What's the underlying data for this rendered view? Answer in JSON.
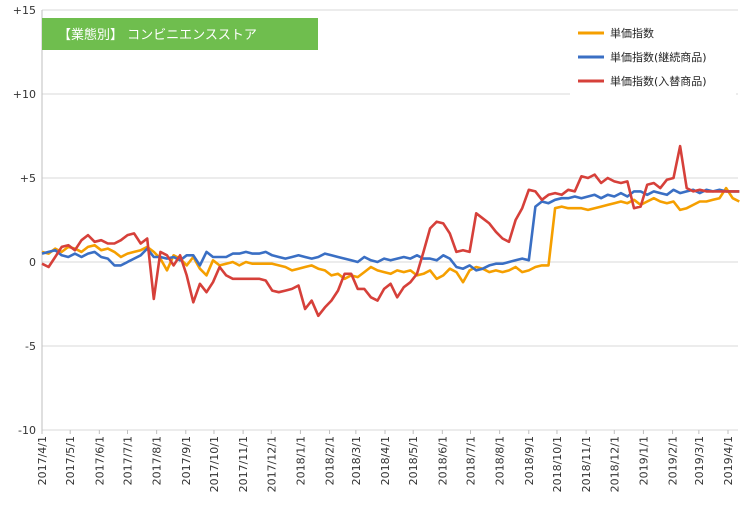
{
  "chart_data": {
    "type": "line",
    "title": "【業態別】 コンビニエンスストア",
    "title_bg": "#6fbe4e",
    "ylim": [
      -10,
      15
    ],
    "yticks": [
      "-10",
      "-5",
      "0",
      "+5",
      "+10",
      "+15"
    ],
    "ytick_values": [
      -10,
      -5,
      0,
      5,
      10,
      15
    ],
    "grid": "horizontal",
    "legend_position": "top-right",
    "x_dates": [
      "2017-04-01",
      "2017-04-08",
      "2017-04-15",
      "2017-04-22",
      "2017-04-29",
      "2017-05-06",
      "2017-05-13",
      "2017-05-20",
      "2017-05-27",
      "2017-06-03",
      "2017-06-10",
      "2017-06-17",
      "2017-06-24",
      "2017-07-01",
      "2017-07-08",
      "2017-07-15",
      "2017-07-22",
      "2017-07-29",
      "2017-08-05",
      "2017-08-12",
      "2017-08-19",
      "2017-08-26",
      "2017-09-02",
      "2017-09-09",
      "2017-09-16",
      "2017-09-23",
      "2017-09-30",
      "2017-10-07",
      "2017-10-14",
      "2017-10-21",
      "2017-10-28",
      "2017-11-04",
      "2017-11-11",
      "2017-11-18",
      "2017-11-25",
      "2017-12-02",
      "2017-12-09",
      "2017-12-16",
      "2017-12-23",
      "2017-12-30",
      "2018-01-06",
      "2018-01-13",
      "2018-01-20",
      "2018-01-27",
      "2018-02-03",
      "2018-02-10",
      "2018-02-17",
      "2018-02-24",
      "2018-03-03",
      "2018-03-10",
      "2018-03-17",
      "2018-03-24",
      "2018-03-31",
      "2018-04-07",
      "2018-04-14",
      "2018-04-21",
      "2018-04-28",
      "2018-05-05",
      "2018-05-12",
      "2018-05-19",
      "2018-05-26",
      "2018-06-02",
      "2018-06-09",
      "2018-06-16",
      "2018-06-23",
      "2018-06-30",
      "2018-07-07",
      "2018-07-14",
      "2018-07-21",
      "2018-07-28",
      "2018-08-04",
      "2018-08-11",
      "2018-08-18",
      "2018-08-25",
      "2018-09-01",
      "2018-09-08",
      "2018-09-15",
      "2018-09-22",
      "2018-09-29",
      "2018-10-06",
      "2018-10-13",
      "2018-10-20",
      "2018-10-27",
      "2018-11-03",
      "2018-11-10",
      "2018-11-17",
      "2018-11-24",
      "2018-12-01",
      "2018-12-08",
      "2018-12-15",
      "2018-12-22",
      "2018-12-29",
      "2019-01-05",
      "2019-01-12",
      "2019-01-19",
      "2019-01-26",
      "2019-02-02",
      "2019-02-09",
      "2019-02-16",
      "2019-02-23",
      "2019-03-02",
      "2019-03-09",
      "2019-03-16",
      "2019-03-23",
      "2019-03-30",
      "2019-04-06",
      "2019-04-13"
    ],
    "x_ticks": [
      "2017/4/1",
      "2017/5/1",
      "2017/6/1",
      "2017/7/1",
      "2017/8/1",
      "2017/9/1",
      "2017/10/1",
      "2017/11/1",
      "2017/12/1",
      "2018/1/1",
      "2018/2/1",
      "2018/3/1",
      "2018/4/1",
      "2018/5/1",
      "2018/6/1",
      "2018/7/1",
      "2018/8/1",
      "2018/9/1",
      "2018/10/1",
      "2018/11/1",
      "2018/12/1",
      "2019/1/1",
      "2019/2/1",
      "2019/3/1",
      "2019/4/1"
    ],
    "x_tick_dates": [
      "2017-04-01",
      "2017-05-01",
      "2017-06-01",
      "2017-07-01",
      "2017-08-01",
      "2017-09-01",
      "2017-10-01",
      "2017-11-01",
      "2017-12-01",
      "2018-01-01",
      "2018-02-01",
      "2018-03-01",
      "2018-04-01",
      "2018-05-01",
      "2018-06-01",
      "2018-07-01",
      "2018-08-01",
      "2018-09-01",
      "2018-10-01",
      "2018-11-01",
      "2018-12-01",
      "2019-01-01",
      "2019-02-01",
      "2019-03-01",
      "2019-04-01"
    ],
    "series": [
      {
        "name": "単価指数",
        "color": "#f59f00",
        "values": [
          0.6,
          0.5,
          0.8,
          0.6,
          0.9,
          0.8,
          0.6,
          0.9,
          1.0,
          0.7,
          0.8,
          0.6,
          0.3,
          0.5,
          0.6,
          0.7,
          0.9,
          0.6,
          0.2,
          -0.5,
          0.4,
          0.2,
          -0.2,
          0.3,
          -0.4,
          -0.8,
          0.1,
          -0.2,
          -0.1,
          0.0,
          -0.2,
          0.0,
          -0.1,
          -0.1,
          -0.1,
          -0.1,
          -0.2,
          -0.3,
          -0.5,
          -0.4,
          -0.3,
          -0.2,
          -0.4,
          -0.5,
          -0.8,
          -0.7,
          -1.0,
          -0.8,
          -0.9,
          -0.6,
          -0.3,
          -0.5,
          -0.6,
          -0.7,
          -0.5,
          -0.6,
          -0.5,
          -0.8,
          -0.7,
          -0.5,
          -1.0,
          -0.8,
          -0.4,
          -0.6,
          -1.2,
          -0.5,
          -0.3,
          -0.4,
          -0.6,
          -0.5,
          -0.6,
          -0.5,
          -0.3,
          -0.6,
          -0.5,
          -0.3,
          -0.2,
          -0.2,
          3.2,
          3.3,
          3.2,
          3.2,
          3.2,
          3.1,
          3.2,
          3.3,
          3.4,
          3.5,
          3.6,
          3.5,
          3.7,
          3.4,
          3.6,
          3.8,
          3.6,
          3.5,
          3.6,
          3.1,
          3.2,
          3.4,
          3.6,
          3.6,
          3.7,
          3.8,
          4.4,
          3.8,
          3.6
        ],
        "label_name": "series.0.name"
      },
      {
        "name": "単価指数(継続商品)",
        "color": "#3a6fc4",
        "values": [
          0.5,
          0.6,
          0.7,
          0.4,
          0.3,
          0.5,
          0.3,
          0.5,
          0.6,
          0.3,
          0.2,
          -0.2,
          -0.2,
          0.0,
          0.2,
          0.4,
          0.8,
          0.3,
          0.3,
          0.2,
          0.3,
          0.1,
          0.4,
          0.4,
          -0.2,
          0.6,
          0.3,
          0.3,
          0.3,
          0.5,
          0.5,
          0.6,
          0.5,
          0.5,
          0.6,
          0.4,
          0.3,
          0.2,
          0.3,
          0.4,
          0.3,
          0.2,
          0.3,
          0.5,
          0.4,
          0.3,
          0.2,
          0.1,
          0.0,
          0.3,
          0.1,
          0.0,
          0.2,
          0.1,
          0.2,
          0.3,
          0.2,
          0.4,
          0.2,
          0.2,
          0.1,
          0.4,
          0.2,
          -0.3,
          -0.4,
          -0.2,
          -0.5,
          -0.4,
          -0.2,
          -0.1,
          -0.1,
          0.0,
          0.1,
          0.2,
          0.1,
          3.3,
          3.6,
          3.5,
          3.7,
          3.8,
          3.8,
          3.9,
          3.8,
          3.9,
          4.0,
          3.8,
          4.0,
          3.9,
          4.1,
          3.9,
          4.2,
          4.2,
          4.0,
          4.2,
          4.1,
          4.0,
          4.3,
          4.1,
          4.2,
          4.3,
          4.1,
          4.3,
          4.2,
          4.3,
          4.2,
          4.2,
          4.2
        ],
        "label_name": "series.1.name"
      },
      {
        "name": "単価指数(入替商品)",
        "color": "#d6403a",
        "values": [
          -0.1,
          -0.3,
          0.3,
          0.9,
          1.0,
          0.7,
          1.3,
          1.6,
          1.2,
          1.3,
          1.1,
          1.1,
          1.3,
          1.6,
          1.7,
          1.1,
          1.4,
          -2.2,
          0.6,
          0.4,
          -0.2,
          0.4,
          -0.8,
          -2.4,
          -1.3,
          -1.8,
          -1.2,
          -0.3,
          -0.8,
          -1.0,
          -1.0,
          -1.0,
          -1.0,
          -1.0,
          -1.1,
          -1.7,
          -1.8,
          -1.7,
          -1.6,
          -1.4,
          -2.8,
          -2.3,
          -3.2,
          -2.7,
          -2.3,
          -1.7,
          -0.7,
          -0.7,
          -1.6,
          -1.6,
          -2.1,
          -2.3,
          -1.6,
          -1.3,
          -2.1,
          -1.5,
          -1.2,
          -0.7,
          0.6,
          2.0,
          2.4,
          2.3,
          1.7,
          0.6,
          0.7,
          0.6,
          2.9,
          2.6,
          2.3,
          1.8,
          1.4,
          1.2,
          2.5,
          3.2,
          4.3,
          4.2,
          3.7,
          4.0,
          4.1,
          4.0,
          4.3,
          4.2,
          5.1,
          5.0,
          5.2,
          4.7,
          5.0,
          4.8,
          4.7,
          4.8,
          3.2,
          3.3,
          4.6,
          4.7,
          4.4,
          4.9,
          5.0,
          6.9,
          4.4,
          4.2,
          4.3,
          4.2,
          4.2,
          4.2,
          4.2,
          4.2,
          4.2
        ]
      }
    ]
  }
}
